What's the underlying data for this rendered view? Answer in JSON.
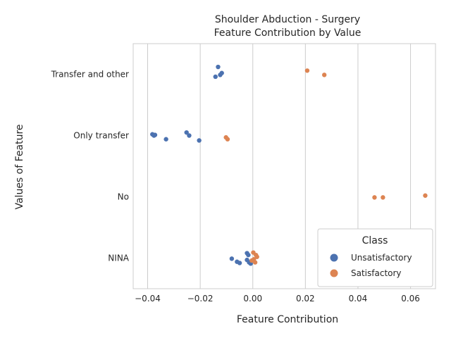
{
  "chart_data": {
    "type": "scatter",
    "title_lines": [
      "Shoulder Abduction - Surgery",
      "Feature Contribution by Value"
    ],
    "xlabel": "Feature Contribution",
    "ylabel": "Values of Feature",
    "xlim": [
      -0.0455,
      0.0695
    ],
    "x_ticks": [
      -0.04,
      -0.02,
      0.0,
      0.02,
      0.04,
      0.06
    ],
    "x_tick_labels": [
      "−0.04",
      "−0.02",
      "0.00",
      "0.02",
      "0.04",
      "0.06"
    ],
    "categories": [
      "Transfer and other",
      "Only transfer",
      "No",
      "NINA"
    ],
    "grid": "vertical",
    "legend": {
      "title": "Class",
      "placement": "bottom-right",
      "entries": [
        "Unsatisfactory",
        "Satisfactory"
      ]
    },
    "series": [
      {
        "name": "Unsatisfactory",
        "color": "#4c72b0",
        "points": [
          {
            "category": "Transfer and other",
            "x": -0.0132,
            "jitter": -0.12
          },
          {
            "category": "Transfer and other",
            "x": -0.0118,
            "jitter": -0.02
          },
          {
            "category": "Transfer and other",
            "x": -0.0124,
            "jitter": 0.01
          },
          {
            "category": "Transfer and other",
            "x": -0.0142,
            "jitter": 0.04
          },
          {
            "category": "Only transfer",
            "x": -0.0382,
            "jitter": -0.02
          },
          {
            "category": "Only transfer",
            "x": -0.0372,
            "jitter": -0.01
          },
          {
            "category": "Only transfer",
            "x": -0.0376,
            "jitter": 0.0
          },
          {
            "category": "Only transfer",
            "x": -0.0252,
            "jitter": -0.05
          },
          {
            "category": "Only transfer",
            "x": -0.0242,
            "jitter": 0.0
          },
          {
            "category": "Only transfer",
            "x": -0.033,
            "jitter": 0.06
          },
          {
            "category": "Only transfer",
            "x": -0.0204,
            "jitter": 0.08
          },
          {
            "category": "NINA",
            "x": -0.0022,
            "jitter": -0.08
          },
          {
            "category": "NINA",
            "x": -0.0017,
            "jitter": -0.05
          },
          {
            "category": "NINA",
            "x": -0.008,
            "jitter": 0.01
          },
          {
            "category": "NINA",
            "x": -0.006,
            "jitter": 0.06
          },
          {
            "category": "NINA",
            "x": -0.005,
            "jitter": 0.08
          },
          {
            "category": "NINA",
            "x": -0.0022,
            "jitter": 0.03
          },
          {
            "category": "NINA",
            "x": -0.0014,
            "jitter": 0.07
          },
          {
            "category": "NINA",
            "x": -0.0008,
            "jitter": 0.09
          }
        ]
      },
      {
        "name": "Satisfactory",
        "color": "#dd8452",
        "points": [
          {
            "category": "Transfer and other",
            "x": 0.0207,
            "jitter": -0.06
          },
          {
            "category": "Transfer and other",
            "x": 0.0272,
            "jitter": 0.01
          },
          {
            "category": "Only transfer",
            "x": -0.0102,
            "jitter": 0.03
          },
          {
            "category": "Only transfer",
            "x": -0.0096,
            "jitter": 0.06
          },
          {
            "category": "No",
            "x": 0.0656,
            "jitter": -0.02
          },
          {
            "category": "No",
            "x": 0.0463,
            "jitter": 0.01
          },
          {
            "category": "No",
            "x": 0.0495,
            "jitter": 0.01
          },
          {
            "category": "NINA",
            "x": 0.0002,
            "jitter": -0.09
          },
          {
            "category": "NINA",
            "x": 0.0012,
            "jitter": -0.05
          },
          {
            "category": "NINA",
            "x": 0.0016,
            "jitter": -0.02
          },
          {
            "category": "NINA",
            "x": 0.0004,
            "jitter": 0.02
          },
          {
            "category": "NINA",
            "x": -0.0004,
            "jitter": 0.04
          },
          {
            "category": "NINA",
            "x": 0.0009,
            "jitter": 0.07
          }
        ]
      }
    ]
  }
}
